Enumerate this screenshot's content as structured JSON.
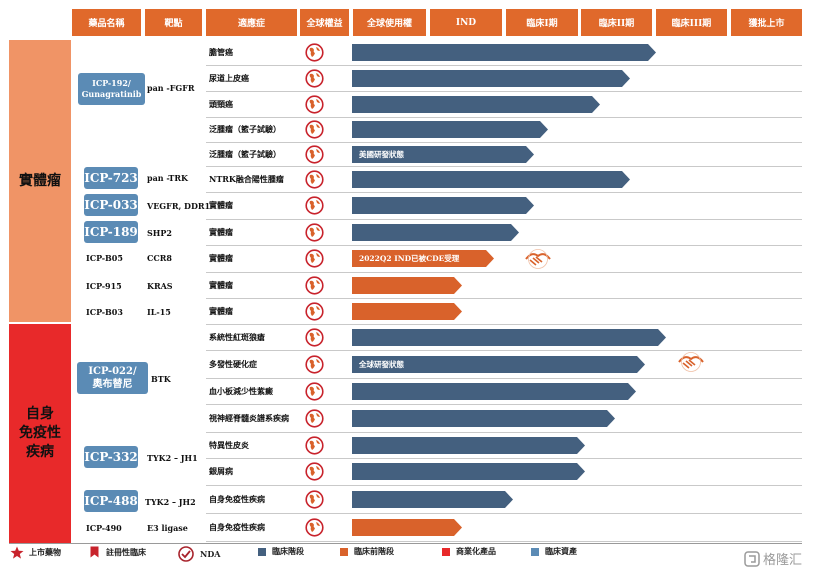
{
  "headers": [
    "藥品名稱",
    "靶點",
    "適應症",
    "全球權益",
    "全球使用權",
    "IND",
    "臨床I期",
    "臨床II期",
    "臨床III期",
    "獲批上市"
  ],
  "categories": {
    "solid": "實體瘤",
    "autoimmune": "自身\n免疫性\n疾病"
  },
  "drugs": {
    "icp192": "ICP-192/\nGunagratinib",
    "icp723": "ICP-723",
    "icp033": "ICP-033",
    "icp189": "ICP-189",
    "icpb05": "ICP-B05",
    "icp915": "ICP-915",
    "icpb03": "ICP-B03",
    "icp022": "ICP-022/\n奧布替尼",
    "icp332": "ICP-332",
    "icp488": "ICP-488",
    "icp490": "ICP-490"
  },
  "targets": {
    "icp192": "pan -FGFR",
    "icp723": "pan -TRK",
    "icp033": "VEGFR, DDR1",
    "icp189": "SHP2",
    "icpb05": "CCR8",
    "icp915": "KRAS",
    "icpb03": "IL-15",
    "icp022": "BTK",
    "icp332": "TYK2 – JH1",
    "icp488": "TYK2 – JH2",
    "icp490": "E3 ligase"
  },
  "indications": [
    "膽管癌",
    "尿道上皮癌",
    "頭頸癌",
    "泛腫瘤（籃子試驗）",
    "泛腫瘤（籃子試驗）",
    "NTRK融合陽性腫瘤",
    "實體瘤",
    "實體瘤",
    "實體瘤",
    "實體瘤",
    "實體瘤",
    "系統性紅斑狼瘡",
    "多發性硬化症",
    "血小板減少性紫癜",
    "視神經脊髓炎譜系疾病",
    "特異性皮炎",
    "銀屑病",
    "自身免疫性疾病",
    "自身免疫性疾病"
  ],
  "bar_labels": {
    "pan_tumor_us": "美國研發狀態",
    "b05_ind": "2022Q2 IND已被CDE受理",
    "ms_global": "全球研發狀態"
  },
  "rows_progress": [
    {
      "stage_end": 0.985,
      "color": "#44607f"
    },
    {
      "stage_end": 0.9,
      "color": "#44607f"
    },
    {
      "stage_end": 0.8,
      "color": "#44607f"
    },
    {
      "stage_end": 0.625,
      "color": "#44607f"
    },
    {
      "stage_end": 0.58,
      "color": "#44607f"
    },
    {
      "stage_end": 0.9,
      "color": "#44607f"
    },
    {
      "stage_end": 0.58,
      "color": "#44607f"
    },
    {
      "stage_end": 0.53,
      "color": "#44607f"
    },
    {
      "stage_end": 0.445,
      "color": "#d9622b"
    },
    {
      "stage_end": 0.34,
      "color": "#d9622b"
    },
    {
      "stage_end": 0.34,
      "color": "#d9622b"
    },
    {
      "stage_end": 1.02,
      "color": "#44607f"
    },
    {
      "stage_end": 0.95,
      "color": "#44607f"
    },
    {
      "stage_end": 0.92,
      "color": "#44607f"
    },
    {
      "stage_end": 0.85,
      "color": "#44607f"
    },
    {
      "stage_end": 0.75,
      "color": "#44607f"
    },
    {
      "stage_end": 0.75,
      "color": "#44607f"
    },
    {
      "stage_end": 0.51,
      "color": "#44607f"
    },
    {
      "stage_end": 0.34,
      "color": "#d9622b"
    }
  ],
  "legend": {
    "marketed": "上市藥物",
    "registrational": "註冊性臨床",
    "nda": "NDA",
    "clinical": "臨床階段",
    "preclinical": "臨床前階段",
    "commercial": "商業化產品",
    "clinical_asset": "臨床資產"
  },
  "colors": {
    "header": "#e0692b",
    "solid_bg": "#f09466",
    "autoimmune_bg": "#e8292a",
    "clinical": "#44607f",
    "preclinical": "#d9622b",
    "drug_box": "#5b8bb5"
  },
  "icons": [
    "globe-icon",
    "handshake-icon",
    "star-icon",
    "bookmark-icon",
    "check-circle-icon"
  ],
  "watermark": "格隆汇"
}
